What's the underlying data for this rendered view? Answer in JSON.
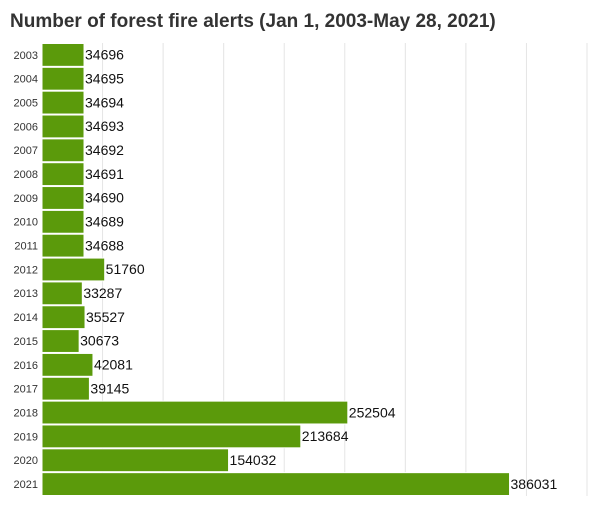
{
  "chart_data": {
    "type": "hbar",
    "title": "Number of forest fire alerts (Jan 1, 2003-May 28, 2021)",
    "categories": [
      "2003",
      "2004",
      "2005",
      "2006",
      "2007",
      "2008",
      "2009",
      "2010",
      "2011",
      "2012",
      "2013",
      "2014",
      "2015",
      "2016",
      "2017",
      "2018",
      "2019",
      "2020",
      "2021"
    ],
    "values": [
      34696,
      34695,
      34694,
      34693,
      34692,
      34691,
      34690,
      34689,
      34688,
      51760,
      33287,
      35527,
      30673,
      42081,
      39145,
      252504,
      213684,
      154032,
      386031
    ],
    "color": "#5b9a0b",
    "xlim": [
      0,
      450000
    ],
    "xticks": [
      0,
      50000,
      100000,
      150000,
      200000,
      250000,
      300000,
      350000,
      400000,
      450000
    ],
    "grid": true
  }
}
